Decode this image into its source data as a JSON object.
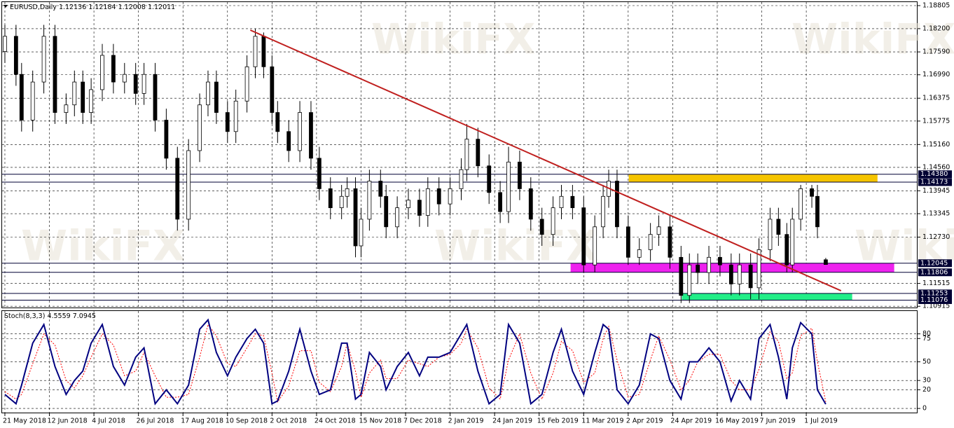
{
  "chart_data": {
    "type": "candlestick",
    "title": "EURUSD,Daily",
    "header_values": [
      1.12136,
      1.12184,
      1.12008,
      1.12011
    ],
    "watermark": "WikiFX",
    "bull_color": "#ffffff",
    "bear_color": "#000000",
    "x": [
      0,
      4,
      6,
      10,
      14,
      18,
      22,
      25,
      28,
      31,
      35,
      39,
      43,
      47,
      50,
      54,
      58,
      62,
      66,
      70,
      73,
      76,
      80,
      83,
      87,
      90,
      93,
      96,
      98,
      102,
      106,
      110,
      113,
      117,
      121,
      123,
      126,
      128,
      131,
      135,
      137,
      141,
      145,
      149,
      152,
      156,
      160,
      164,
      166,
      170,
      174,
      178,
      181,
      185,
      189,
      193,
      197,
      200,
      204,
      208,
      212,
      215,
      217,
      220,
      224,
      228,
      232,
      235,
      239,
      243,
      246,
      249,
      253,
      257,
      261,
      264,
      268,
      271,
      275,
      278,
      281,
      283,
      286,
      290,
      292,
      295
    ],
    "open": [
      1.176,
      1.18,
      1.17,
      1.158,
      1.168,
      1.18,
      1.16,
      1.162,
      1.168,
      1.16,
      1.166,
      1.175,
      1.168,
      1.17,
      1.165,
      1.17,
      1.158,
      1.148,
      1.132,
      1.15,
      1.162,
      1.168,
      1.16,
      1.155,
      1.163,
      1.172,
      1.18,
      1.172,
      1.16,
      1.155,
      1.15,
      1.16,
      1.148,
      1.14,
      1.135,
      1.138,
      1.14,
      1.125,
      1.132,
      1.142,
      1.138,
      1.13,
      1.135,
      1.137,
      1.133,
      1.14,
      1.136,
      1.14,
      1.145,
      1.153,
      1.146,
      1.139,
      1.134,
      1.147,
      1.14,
      1.132,
      1.128,
      1.135,
      1.138,
      1.135,
      1.12,
      1.13,
      1.138,
      1.142,
      1.13,
      1.122,
      1.124,
      1.128,
      1.13,
      1.122,
      1.112,
      1.12,
      1.118,
      1.122,
      1.12,
      1.115,
      1.12,
      1.114,
      1.124,
      1.132,
      1.128,
      1.12,
      1.132,
      1.14,
      1.138,
      1.12136
    ],
    "high": [
      1.183,
      1.183,
      1.173,
      1.171,
      1.183,
      1.183,
      1.165,
      1.171,
      1.171,
      1.169,
      1.178,
      1.178,
      1.173,
      1.173,
      1.173,
      1.173,
      1.161,
      1.151,
      1.153,
      1.165,
      1.171,
      1.171,
      1.163,
      1.166,
      1.175,
      1.182,
      1.181,
      1.175,
      1.163,
      1.158,
      1.163,
      1.163,
      1.151,
      1.143,
      1.141,
      1.143,
      1.143,
      1.135,
      1.145,
      1.145,
      1.141,
      1.138,
      1.14,
      1.14,
      1.143,
      1.143,
      1.143,
      1.148,
      1.157,
      1.156,
      1.149,
      1.142,
      1.151,
      1.15,
      1.143,
      1.135,
      1.138,
      1.141,
      1.141,
      1.138,
      1.133,
      1.141,
      1.145,
      1.145,
      1.133,
      1.127,
      1.131,
      1.133,
      1.133,
      1.125,
      1.123,
      1.123,
      1.125,
      1.125,
      1.123,
      1.123,
      1.123,
      1.127,
      1.135,
      1.135,
      1.131,
      1.135,
      1.141,
      1.141,
      1.141,
      1.12184
    ],
    "low": [
      1.173,
      1.167,
      1.155,
      1.155,
      1.165,
      1.157,
      1.157,
      1.159,
      1.157,
      1.157,
      1.163,
      1.165,
      1.165,
      1.162,
      1.162,
      1.155,
      1.145,
      1.129,
      1.129,
      1.147,
      1.159,
      1.157,
      1.152,
      1.152,
      1.16,
      1.169,
      1.169,
      1.157,
      1.152,
      1.147,
      1.147,
      1.145,
      1.137,
      1.132,
      1.132,
      1.135,
      1.122,
      1.122,
      1.129,
      1.135,
      1.127,
      1.127,
      1.132,
      1.13,
      1.13,
      1.133,
      1.133,
      1.137,
      1.142,
      1.143,
      1.136,
      1.131,
      1.131,
      1.137,
      1.129,
      1.125,
      1.125,
      1.132,
      1.132,
      1.118,
      1.118,
      1.127,
      1.135,
      1.127,
      1.12,
      1.12,
      1.121,
      1.125,
      1.119,
      1.11,
      1.11,
      1.115,
      1.115,
      1.117,
      1.112,
      1.112,
      1.111,
      1.111,
      1.121,
      1.125,
      1.118,
      1.118,
      1.129,
      1.135,
      1.127,
      1.12008
    ],
    "close": [
      1.18,
      1.17,
      1.158,
      1.168,
      1.18,
      1.16,
      1.162,
      1.168,
      1.16,
      1.166,
      1.175,
      1.168,
      1.17,
      1.165,
      1.17,
      1.158,
      1.148,
      1.132,
      1.15,
      1.162,
      1.168,
      1.16,
      1.155,
      1.163,
      1.172,
      1.18,
      1.172,
      1.16,
      1.155,
      1.15,
      1.16,
      1.148,
      1.14,
      1.135,
      1.138,
      1.14,
      1.125,
      1.132,
      1.142,
      1.138,
      1.13,
      1.135,
      1.137,
      1.133,
      1.14,
      1.136,
      1.14,
      1.145,
      1.153,
      1.146,
      1.139,
      1.134,
      1.147,
      1.14,
      1.132,
      1.128,
      1.135,
      1.138,
      1.135,
      1.12,
      1.13,
      1.138,
      1.142,
      1.13,
      1.122,
      1.124,
      1.128,
      1.13,
      1.122,
      1.112,
      1.12,
      1.118,
      1.122,
      1.12,
      1.115,
      1.12,
      1.114,
      1.124,
      1.132,
      1.128,
      1.12,
      1.132,
      1.14,
      1.138,
      1.13,
      1.12011
    ],
    "xlim": [
      -1,
      328
    ],
    "xticks": [
      {
        "value": 0,
        "label": "21 May 2018"
      },
      {
        "value": 16,
        "label": "12 Jun 2018"
      },
      {
        "value": 32,
        "label": "4 Jul 2018"
      },
      {
        "value": 48,
        "label": "26 Jul 2018"
      },
      {
        "value": 64,
        "label": "17 Aug 2018"
      },
      {
        "value": 80,
        "label": "10 Sep 2018"
      },
      {
        "value": 96,
        "label": "2 Oct 2018"
      },
      {
        "value": 112,
        "label": "24 Oct 2018"
      },
      {
        "value": 128,
        "label": "15 Nov 2018"
      },
      {
        "value": 144,
        "label": "7 Dec 2018"
      },
      {
        "value": 160,
        "label": "2 Jan 2019"
      },
      {
        "value": 176,
        "label": "24 Jan 2019"
      },
      {
        "value": 192,
        "label": "15 Feb 2019"
      },
      {
        "value": 208,
        "label": "11 Mar 2019"
      },
      {
        "value": 224,
        "label": "2 Apr 2019"
      },
      {
        "value": 240,
        "label": "24 Apr 2019"
      },
      {
        "value": 256,
        "label": "16 May 2019"
      },
      {
        "value": 272,
        "label": "7 Jun 2019"
      },
      {
        "value": 288,
        "label": "1 Jul 2019"
      }
    ],
    "ylim": [
      1.10864,
      1.18897
    ],
    "yticks": [
      1.18805,
      {
        "value": 1.182,
        "label": "1.18200"
      },
      {
        "value": 1.1759,
        "label": "1.17590"
      },
      {
        "value": 1.1699,
        "label": "1.16990"
      },
      1.16375,
      1.15775,
      {
        "value": 1.1516,
        "label": "1.15160"
      },
      {
        "value": 1.1456,
        "label": "1.14560"
      },
      1.13945,
      1.13345,
      {
        "value": 1.1273,
        "label": "1.12730"
      },
      1.11515,
      1.10915
    ],
    "grid": true,
    "levels": [
      {
        "value": 1.1438,
        "label": "1.14380"
      },
      1.14173,
      1.12045,
      1.11806,
      1.11253,
      1.11076
    ],
    "level_color": "#000033",
    "trendline": {
      "x": [
        88.2,
        300.5
      ],
      "y": [
        1.18162,
        1.11323
      ],
      "color": "#c0201f"
    },
    "zones": [
      {
        "x": [
          224.2,
          313.6
        ],
        "y": [
          1.1438,
          1.14173
        ],
        "color": "#f5c400"
      },
      {
        "x": [
          203.3,
          319.6
        ],
        "y": [
          1.12045,
          1.11806
        ],
        "color": "#ee22ee"
      },
      {
        "x": [
          243.3,
          304.5
        ],
        "y": [
          1.11253,
          1.11076
        ],
        "color": "#22ee88"
      }
    ],
    "indicator": {
      "title": "Stoch(8,3,3)",
      "header_values": [
        4.5559,
        7.0945
      ],
      "ylim": [
        -5.2,
        104.5
      ],
      "yticks": [
        80,
        75,
        50,
        30,
        20,
        0
      ],
      "series": [
        {
          "color": "#000080",
          "dashed": false,
          "values": [
            15,
            5,
            25,
            70,
            90,
            45,
            15,
            30,
            40,
            70,
            90,
            45,
            25,
            55,
            65,
            5,
            20,
            5,
            25,
            85,
            95,
            60,
            35,
            55,
            75,
            85,
            70,
            5,
            8,
            40,
            85,
            40,
            15,
            20,
            70,
            70,
            10,
            15,
            60,
            45,
            20,
            45,
            60,
            35,
            55,
            55,
            60,
            80,
            90,
            40,
            5,
            15,
            90,
            70,
            5,
            15,
            60,
            85,
            40,
            15,
            60,
            90,
            85,
            20,
            5,
            25,
            80,
            75,
            30,
            10,
            50,
            50,
            65,
            50,
            8,
            30,
            10,
            75,
            90,
            55,
            10,
            65,
            92,
            80,
            20,
            4.5559
          ]
        },
        {
          "color": "#ff0000",
          "dashed": true,
          "values": [
            18,
            10,
            15,
            48,
            80,
            68,
            30,
            22,
            35,
            55,
            80,
            68,
            35,
            40,
            60,
            35,
            12,
            12,
            15,
            55,
            90,
            78,
            48,
            45,
            65,
            80,
            78,
            38,
            7,
            24,
            62,
            62,
            28,
            18,
            45,
            70,
            40,
            12,
            38,
            52,
            32,
            32,
            52,
            48,
            45,
            55,
            58,
            70,
            85,
            65,
            22,
            10,
            52,
            80,
            38,
            10,
            38,
            72,
            62,
            28,
            38,
            75,
            88,
            52,
            12,
            15,
            52,
            78,
            52,
            20,
            30,
            50,
            58,
            58,
            30,
            20,
            20,
            42,
            82,
            72,
            32,
            38,
            78,
            86,
            50,
            7.0945
          ]
        }
      ]
    }
  }
}
